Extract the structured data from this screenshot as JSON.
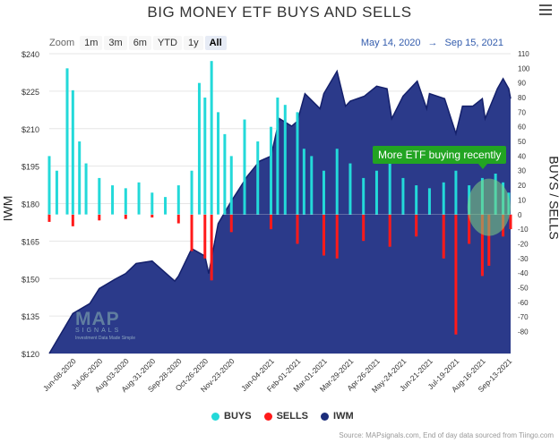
{
  "title": "BIG MONEY ETF BUYS AND SELLS",
  "zoom": {
    "label": "Zoom",
    "buttons": [
      "1m",
      "3m",
      "6m",
      "YTD",
      "1y",
      "All"
    ],
    "active": "All"
  },
  "date_range": {
    "from": "May 14, 2020",
    "arrow": "→",
    "to": "Sep 15, 2021"
  },
  "left_axis_title": "IWM",
  "right_axis_title": "BUYS / SELLS",
  "annotation": "More ETF buying recently",
  "logo": {
    "name": "MAP",
    "sub": "SIGNALS",
    "tagline": "Investment Data Made Simple"
  },
  "legend": [
    {
      "label": "BUYS",
      "color": "#23d9d9"
    },
    {
      "label": "SELLS",
      "color": "#ff1a1a"
    },
    {
      "label": "IWM",
      "color": "#1c2d7a"
    }
  ],
  "credits": "Source: MAPsignals.com, End of day data sourced from Tiingo.com",
  "colors": {
    "buys": "#23d9d9",
    "sells": "#ff1a1a",
    "iwm_fill": "#2b3a8a",
    "iwm_line": "#14206b",
    "highlight": "#7fd17f"
  },
  "chart_data": {
    "type": "bar",
    "x_ticks": [
      "Jun-08-2020",
      "Jul-06-2020",
      "Aug-03-2020",
      "Aug-31-2020",
      "Sep-28-2020",
      "Oct-26-2020",
      "Nov-23-2020",
      "Jan-04-2021",
      "Feb-01-2021",
      "Mar-01-2021",
      "Mar-29-2021",
      "Apr-26-2021",
      "May-24-2021",
      "Jun-21-2021",
      "Jul-19-2021",
      "Aug-16-2021",
      "Sep-13-2021"
    ],
    "left_axis": {
      "label": "IWM",
      "ylim": [
        120,
        240
      ],
      "ticks": [
        "$240",
        "$225",
        "$210",
        "$195",
        "$180",
        "$165",
        "$150",
        "$135",
        "$120"
      ],
      "tick_values": [
        240,
        225,
        210,
        195,
        180,
        165,
        150,
        135,
        120
      ]
    },
    "right_axis": {
      "label": "BUYS / SELLS",
      "ylim": [
        -95,
        110
      ],
      "ticks": [
        110,
        100,
        90,
        80,
        70,
        60,
        50,
        40,
        30,
        20,
        10,
        0,
        -10,
        -20,
        -30,
        -40,
        -50,
        -60,
        -70,
        -80
      ]
    },
    "iwm": {
      "name": "IWM",
      "x": [
        "2020-05-14",
        "2020-06-08",
        "2020-06-26",
        "2020-07-06",
        "2020-07-24",
        "2020-08-03",
        "2020-08-14",
        "2020-08-31",
        "2020-09-24",
        "2020-09-28",
        "2020-10-12",
        "2020-10-26",
        "2020-10-30",
        "2020-11-09",
        "2020-11-23",
        "2020-12-10",
        "2020-12-23",
        "2021-01-04",
        "2021-01-13",
        "2021-01-26",
        "2021-02-01",
        "2021-02-09",
        "2021-02-25",
        "2021-03-01",
        "2021-03-15",
        "2021-03-24",
        "2021-03-29",
        "2021-04-13",
        "2021-04-26",
        "2021-05-07",
        "2021-05-12",
        "2021-05-24",
        "2021-06-08",
        "2021-06-18",
        "2021-06-21",
        "2021-07-07",
        "2021-07-19",
        "2021-07-26",
        "2021-08-06",
        "2021-08-16",
        "2021-08-19",
        "2021-09-01",
        "2021-09-07",
        "2021-09-13",
        "2021-09-15"
      ],
      "y": [
        120,
        136,
        140,
        146,
        150,
        152,
        156,
        157,
        149,
        151,
        162,
        159,
        152,
        172,
        181,
        191,
        197,
        199,
        214,
        211,
        213,
        224,
        218,
        224,
        233,
        219,
        221,
        223,
        227,
        226,
        214,
        223,
        229,
        218,
        224,
        222,
        208,
        219,
        219,
        222,
        214,
        226,
        230,
        226,
        222
      ]
    },
    "buys": {
      "name": "BUYS",
      "x": [
        "2020-05-14",
        "2020-05-22",
        "2020-06-02",
        "2020-06-08",
        "2020-06-15",
        "2020-06-22",
        "2020-07-06",
        "2020-07-20",
        "2020-08-03",
        "2020-08-17",
        "2020-08-31",
        "2020-09-14",
        "2020-09-28",
        "2020-10-12",
        "2020-10-20",
        "2020-10-26",
        "2020-11-02",
        "2020-11-09",
        "2020-11-16",
        "2020-11-23",
        "2020-12-07",
        "2020-12-21",
        "2021-01-04",
        "2021-01-11",
        "2021-01-19",
        "2021-02-01",
        "2021-02-08",
        "2021-02-16",
        "2021-03-01",
        "2021-03-15",
        "2021-03-29",
        "2021-04-12",
        "2021-04-26",
        "2021-05-10",
        "2021-05-24",
        "2021-06-07",
        "2021-06-21",
        "2021-07-06",
        "2021-07-19",
        "2021-08-02",
        "2021-08-16",
        "2021-08-30",
        "2021-09-07",
        "2021-09-13"
      ],
      "y": [
        40,
        30,
        100,
        85,
        50,
        35,
        25,
        20,
        18,
        22,
        15,
        12,
        20,
        30,
        90,
        80,
        105,
        70,
        55,
        40,
        65,
        50,
        60,
        80,
        75,
        70,
        45,
        40,
        30,
        45,
        35,
        25,
        30,
        40,
        25,
        20,
        18,
        22,
        30,
        20,
        25,
        28,
        22,
        15
      ]
    },
    "sells": {
      "name": "SELLS",
      "x": [
        "2020-05-14",
        "2020-06-08",
        "2020-07-06",
        "2020-08-03",
        "2020-08-31",
        "2020-09-28",
        "2020-10-12",
        "2020-10-26",
        "2020-11-02",
        "2020-11-23",
        "2021-01-04",
        "2021-02-01",
        "2021-03-01",
        "2021-03-15",
        "2021-04-12",
        "2021-05-10",
        "2021-06-07",
        "2021-07-06",
        "2021-07-19",
        "2021-08-02",
        "2021-08-16",
        "2021-08-23",
        "2021-09-07",
        "2021-09-15"
      ],
      "y": [
        -5,
        -8,
        -4,
        -3,
        -2,
        -6,
        -25,
        -30,
        -45,
        -12,
        -10,
        -20,
        -28,
        -30,
        -18,
        -22,
        -15,
        -30,
        -82,
        -20,
        -42,
        -35,
        -15,
        -10
      ]
    }
  }
}
